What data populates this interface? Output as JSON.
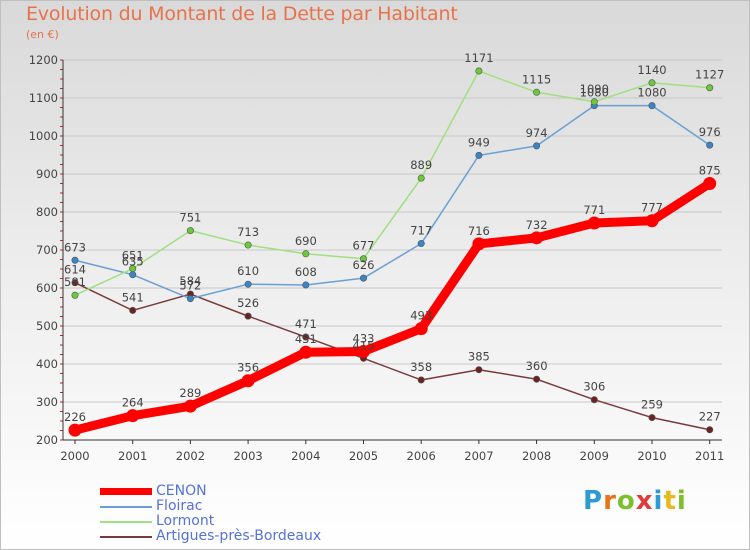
{
  "header": {
    "title": "Evolution du Montant de la Dette par Habitant",
    "subtitle": "(en €)"
  },
  "brand": {
    "text": "Proxiti",
    "letter_colors": [
      "#2d9ad4",
      "#e8731c",
      "#7bbf2a",
      "#e13b3b",
      "#2d9ad4",
      "#e8b81c",
      "#7bbf2a"
    ]
  },
  "chart_data": {
    "type": "line",
    "title": "Evolution du Montant de la Dette par Habitant",
    "subtitle": "(en €)",
    "x": [
      "2000",
      "2001",
      "2002",
      "2003",
      "2004",
      "2005",
      "2006",
      "2007",
      "2008",
      "2009",
      "2010",
      "2011"
    ],
    "ylim": [
      200,
      1200
    ],
    "yticks": [
      200,
      300,
      400,
      500,
      600,
      700,
      800,
      900,
      1000,
      1100,
      1200
    ],
    "grid": "horizontal",
    "legend": "bottom-left",
    "series": [
      {
        "name": "CENON",
        "color": "#ff0000",
        "style": "thick",
        "values": [
          226,
          264,
          289,
          356,
          431,
          433,
          493,
          716,
          732,
          771,
          777,
          875
        ]
      },
      {
        "name": "Floirac",
        "color": "#6b9fd1",
        "marker": "#3a85c8",
        "style": "thin",
        "values": [
          673,
          635,
          572,
          610,
          608,
          626,
          717,
          949,
          974,
          1080,
          1080,
          976
        ]
      },
      {
        "name": "Lormont",
        "color": "#9fe07f",
        "marker": "#6cc93a",
        "style": "thin",
        "values": [
          581,
          651,
          751,
          713,
          690,
          677,
          889,
          1171,
          1115,
          1090,
          1140,
          1127
        ]
      },
      {
        "name": "Artigues-près-Bordeaux",
        "color": "#7a3a3a",
        "marker": "#6b2323",
        "style": "thin",
        "values": [
          614,
          541,
          584,
          526,
          471,
          415,
          358,
          385,
          360,
          306,
          259,
          227
        ]
      }
    ]
  }
}
